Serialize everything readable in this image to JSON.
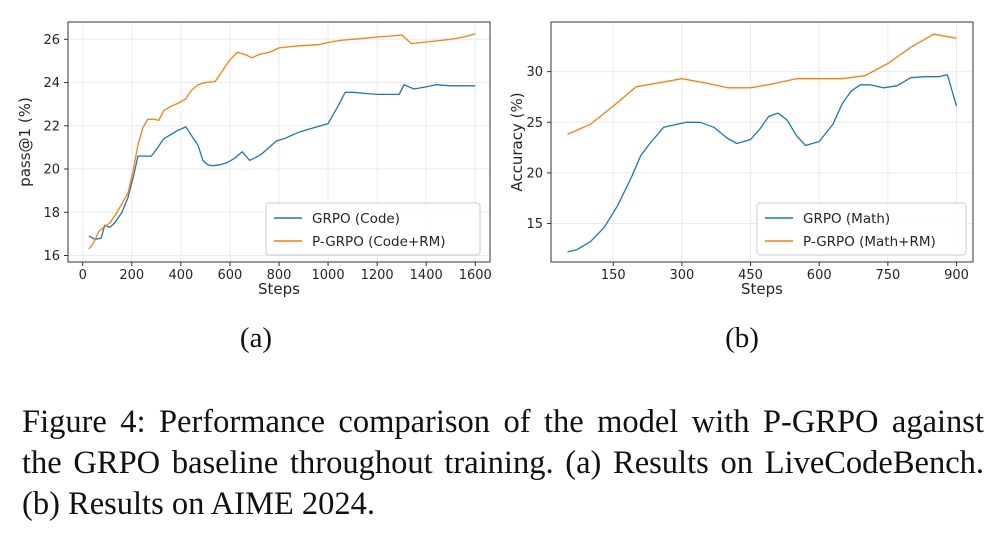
{
  "colors": {
    "grpo": "#1f77b4",
    "pgrpo": "#ff7f0e",
    "grid": "#ebebeb",
    "axis": "#333333"
  },
  "chart_data": [
    {
      "type": "line",
      "panel_label": "(a)",
      "xlabel": "Steps",
      "ylabel": "pass@1 (%)",
      "xlim": [
        -60,
        1660
      ],
      "ylim": [
        15.7,
        26.8
      ],
      "xticks": [
        0,
        200,
        400,
        600,
        800,
        1000,
        1200,
        1400,
        1600
      ],
      "yticks": [
        16,
        18,
        20,
        22,
        24,
        26
      ],
      "grid": true,
      "legend_position": "bottom-right",
      "series": [
        {
          "name": "GRPO (Code)",
          "color": "#1f77b4",
          "x": [
            25,
            50,
            75,
            90,
            110,
            130,
            160,
            185,
            210,
            225,
            250,
            280,
            300,
            330,
            360,
            390,
            420,
            440,
            470,
            490,
            510,
            530,
            560,
            590,
            620,
            650,
            680,
            700,
            730,
            760,
            790,
            820,
            880,
            940,
            1000,
            1040,
            1070,
            1100,
            1150,
            1200,
            1250,
            1290,
            1310,
            1350,
            1400,
            1440,
            1500,
            1560,
            1600
          ],
          "y": [
            16.9,
            16.75,
            16.8,
            17.4,
            17.3,
            17.5,
            18.0,
            18.7,
            19.8,
            20.6,
            20.6,
            20.6,
            20.9,
            21.4,
            21.6,
            21.8,
            21.95,
            21.6,
            21.1,
            20.4,
            20.2,
            20.15,
            20.2,
            20.3,
            20.5,
            20.8,
            20.4,
            20.5,
            20.7,
            21.0,
            21.3,
            21.4,
            21.7,
            21.9,
            22.1,
            22.9,
            23.55,
            23.55,
            23.5,
            23.45,
            23.45,
            23.45,
            23.9,
            23.7,
            23.8,
            23.9,
            23.85,
            23.85,
            23.85
          ]
        },
        {
          "name": "P-GRPO (Code+RM)",
          "color": "#ff7f0e",
          "x": [
            25,
            45,
            65,
            85,
            110,
            135,
            160,
            185,
            205,
            225,
            245,
            265,
            290,
            310,
            330,
            360,
            390,
            420,
            440,
            470,
            500,
            540,
            570,
            600,
            630,
            660,
            690,
            720,
            760,
            800,
            880,
            960,
            1000,
            1050,
            1100,
            1150,
            1200,
            1250,
            1300,
            1340,
            1380,
            1420,
            1460,
            1500,
            1550,
            1600
          ],
          "y": [
            16.3,
            16.6,
            17.1,
            17.3,
            17.5,
            17.9,
            18.4,
            18.9,
            19.9,
            21.1,
            21.9,
            22.3,
            22.3,
            22.25,
            22.7,
            22.9,
            23.05,
            23.25,
            23.6,
            23.9,
            24.0,
            24.05,
            24.55,
            25.05,
            25.4,
            25.3,
            25.15,
            25.3,
            25.4,
            25.6,
            25.7,
            25.75,
            25.85,
            25.95,
            26.0,
            26.05,
            26.1,
            26.15,
            26.2,
            25.8,
            25.85,
            25.9,
            25.95,
            26.0,
            26.1,
            26.25
          ]
        }
      ]
    },
    {
      "type": "line",
      "panel_label": "(b)",
      "xlabel": "Steps",
      "ylabel": "Accuracy (%)",
      "xlim": [
        14,
        936
      ],
      "ylim": [
        11.2,
        34.9
      ],
      "xticks": [
        150,
        300,
        450,
        600,
        750,
        900
      ],
      "yticks": [
        15,
        20,
        25,
        30
      ],
      "grid": true,
      "legend_position": "bottom-right",
      "series": [
        {
          "name": "GRPO (Math)",
          "color": "#1f77b4",
          "x": [
            50,
            70,
            100,
            130,
            160,
            190,
            210,
            230,
            260,
            290,
            310,
            340,
            370,
            400,
            420,
            450,
            470,
            490,
            510,
            530,
            550,
            570,
            600,
            630,
            650,
            670,
            690,
            710,
            740,
            770,
            800,
            830,
            860,
            880,
            900
          ],
          "y": [
            12.2,
            12.4,
            13.2,
            14.6,
            16.8,
            19.6,
            21.7,
            22.9,
            24.5,
            24.8,
            25.0,
            25.0,
            24.5,
            23.4,
            22.9,
            23.3,
            24.3,
            25.6,
            25.9,
            25.2,
            23.7,
            22.7,
            23.1,
            24.8,
            26.8,
            28.1,
            28.7,
            28.7,
            28.4,
            28.6,
            29.4,
            29.5,
            29.5,
            29.7,
            26.6
          ]
        },
        {
          "name": "P-GRPO (Math+RM)",
          "color": "#ff7f0e",
          "x": [
            50,
            100,
            150,
            200,
            250,
            300,
            350,
            400,
            450,
            500,
            550,
            600,
            650,
            700,
            750,
            800,
            850,
            900
          ],
          "y": [
            23.8,
            24.8,
            26.6,
            28.5,
            28.9,
            29.3,
            28.9,
            28.4,
            28.4,
            28.8,
            29.3,
            29.3,
            29.3,
            29.6,
            30.8,
            32.4,
            33.7,
            33.3
          ]
        }
      ]
    }
  ],
  "subplot_labels": [
    "(a)",
    "(b)"
  ],
  "caption": "Figure 4: Performance comparison of the model with P-GRPO against the GRPO baseline throughout training. (a) Results on LiveCodeBench. (b) Results on AIME 2024."
}
